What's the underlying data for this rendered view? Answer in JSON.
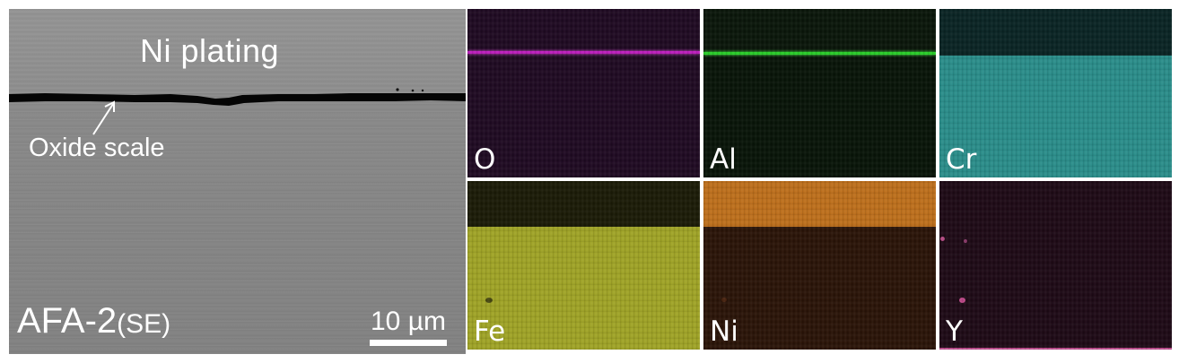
{
  "sem_image": {
    "plating_label": "Ni plating",
    "oxide_label": "Oxide scale",
    "sample_label": "AFA-2",
    "mode_label": "(SE)",
    "scale_label": "10 µm"
  },
  "eds_maps": [
    {
      "element": "O",
      "color": "#c020c0"
    },
    {
      "element": "Al",
      "color": "#2cd42c"
    },
    {
      "element": "Cr",
      "color": "#2a8d8a"
    },
    {
      "element": "Fe",
      "color": "#9fa326"
    },
    {
      "element": "Ni",
      "color": "#bd6f1c"
    },
    {
      "element": "Y",
      "color": "#c04a8a"
    }
  ]
}
